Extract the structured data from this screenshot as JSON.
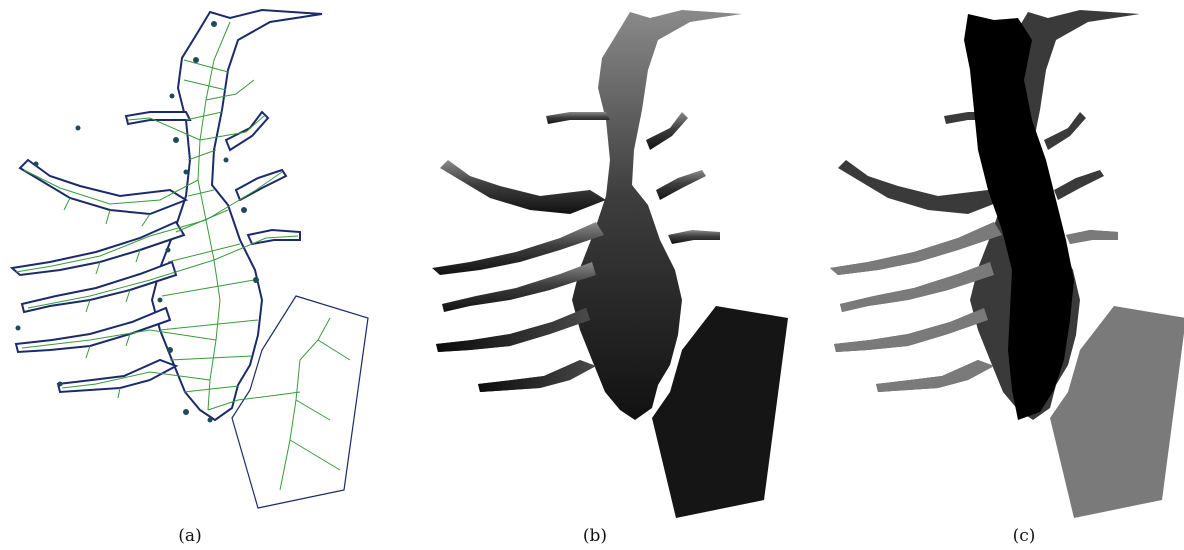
{
  "figure": {
    "panels": [
      {
        "id": "a",
        "caption": "(a)",
        "style": "mesh",
        "outline_color": "#1b2a6b",
        "mesh_color": "#3a9a3a"
      },
      {
        "id": "b",
        "caption": "(b)",
        "style": "gradient",
        "fill_top": "#8a8a8a",
        "fill_bottom": "#111111"
      },
      {
        "id": "c",
        "caption": "(c)",
        "style": "channels",
        "channel_color": "#000000",
        "tributary_dark": "#3a3a3a",
        "tributary_light": "#7a7a7a"
      }
    ]
  }
}
